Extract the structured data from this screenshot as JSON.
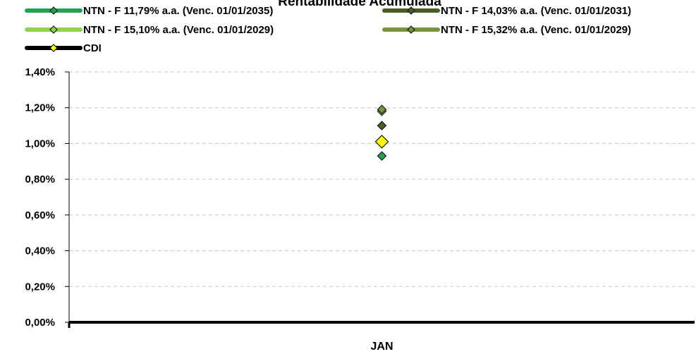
{
  "chart_data": {
    "type": "line",
    "title": "Rentabilidade Acumulada",
    "categories": [
      "JAN"
    ],
    "y_tick_labels": [
      "0,00%",
      "0,20%",
      "0,40%",
      "0,60%",
      "0,80%",
      "1,00%",
      "1,20%",
      "1,40%"
    ],
    "ylim": [
      0,
      1.4
    ],
    "y_unit": "%",
    "grid": "horizontal dashed",
    "legend_position": "top",
    "series": [
      {
        "name": "NTN - F 11,79% a.a. (Venc. 01/01/2035)",
        "values": [
          0.93
        ],
        "color": "#1fa354",
        "marker": "diamond"
      },
      {
        "name": "NTN - F 14,03% a.a. (Venc. 01/01/2031)",
        "values": [
          1.1
        ],
        "color": "#4a5e23",
        "marker": "diamond"
      },
      {
        "name": "NTN - F 15,10% a.a. (Venc. 01/01/2029)",
        "values": [
          1.18
        ],
        "color": "#92d050",
        "marker": "diamond"
      },
      {
        "name": "NTN - F 15,32% a.a. (Venc. 01/01/2029)",
        "values": [
          1.19
        ],
        "color": "#77933c",
        "marker": "diamond"
      },
      {
        "name": "CDI",
        "values": [
          1.01
        ],
        "color": "#000000",
        "marker_color": "#ffff00",
        "marker": "diamond"
      }
    ]
  }
}
